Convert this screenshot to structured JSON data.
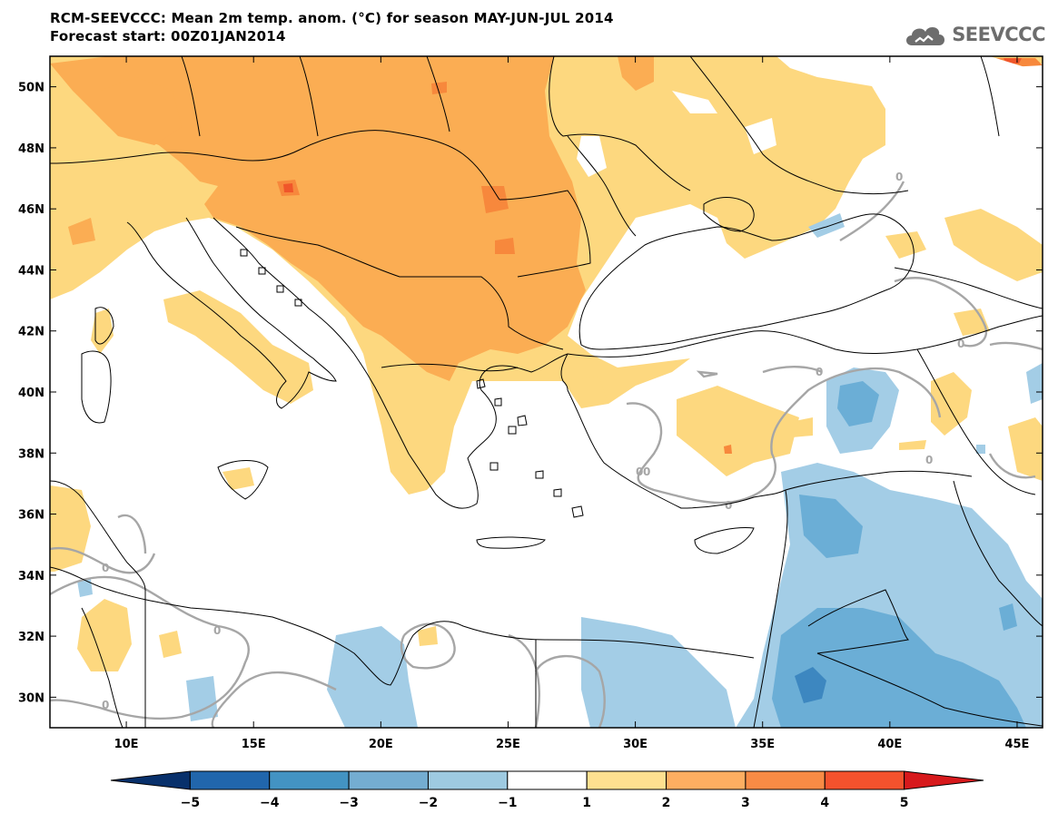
{
  "header": {
    "title_line1": "RCM-SEEVCCC: Mean 2m temp. anom. (°C) for season MAY-JUN-JUL 2014",
    "title_line2": "Forecast start: 00Z01JAN2014"
  },
  "logo": {
    "text": "SEEVCCC",
    "icon": "cloud-icon"
  },
  "map": {
    "lon_range": [
      7,
      46
    ],
    "lat_range": [
      29,
      51
    ],
    "lat_ticks": [
      "50N",
      "48N",
      "46N",
      "44N",
      "42N",
      "40N",
      "38N",
      "36N",
      "34N",
      "32N",
      "30N"
    ],
    "lon_ticks": [
      "10E",
      "15E",
      "20E",
      "25E",
      "30E",
      "35E",
      "40E",
      "45E"
    ],
    "contour_label": "0"
  },
  "colorbar": {
    "labels": [
      "-5",
      "-4",
      "-3",
      "-2",
      "-1",
      "1",
      "2",
      "3",
      "4",
      "5"
    ],
    "colors": [
      "#08306b",
      "#2166ac",
      "#4393c3",
      "#74add1",
      "#9ecae1",
      "#ffffff",
      "#fee090",
      "#fdae61",
      "#f88b45",
      "#f4522d",
      "#d7191c"
    ]
  },
  "colors": {
    "anom_1_2": "#fdd87f",
    "anom_2_3": "#fbad53",
    "anom_3_4": "#f7883c",
    "anom_4_5": "#f0562a",
    "anom_m1_m2": "#a3cde6",
    "anom_m2_m3": "#6baed6",
    "anom_m3_m4": "#3d87c0",
    "border": "#000000",
    "contour": "#a6a6a6"
  }
}
